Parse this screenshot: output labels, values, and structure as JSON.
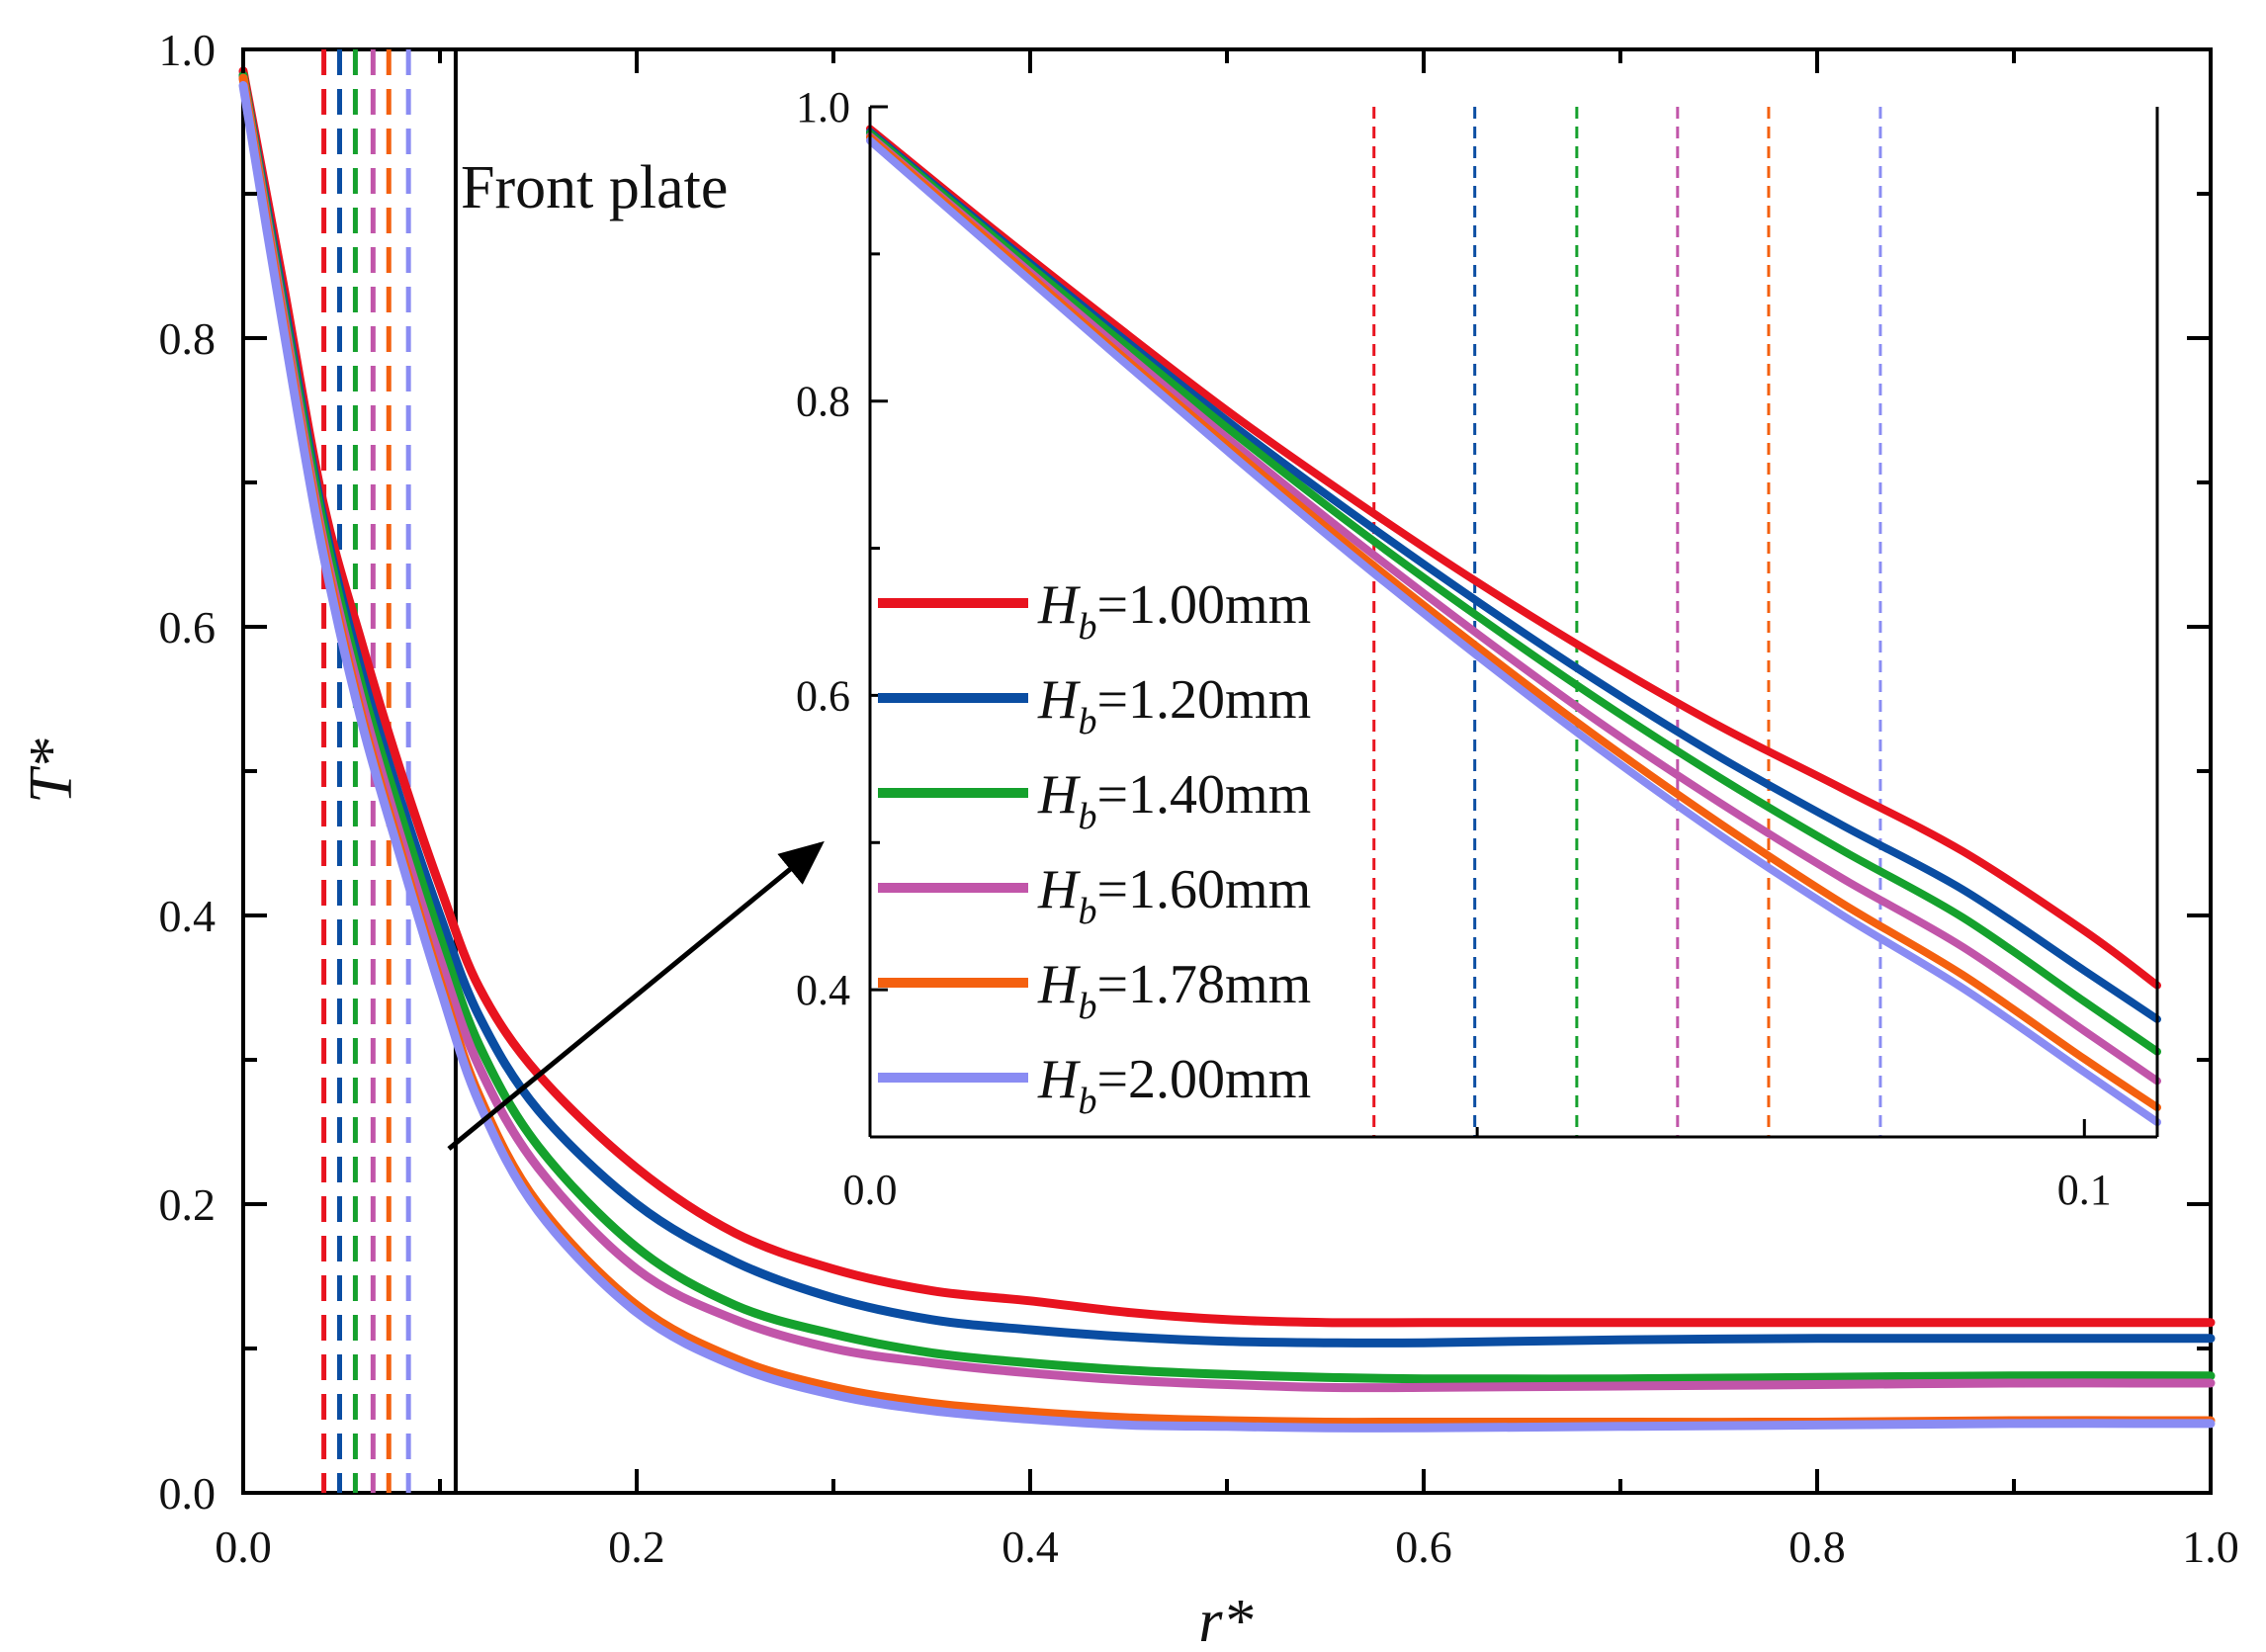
{
  "chart_data": [
    {
      "type": "line",
      "role": "main",
      "xlabel": "r*",
      "ylabel": "T*",
      "xlim": [
        0.0,
        1.0
      ],
      "ylim": [
        0.0,
        1.0
      ],
      "xticks": [
        "0.0",
        "0.2",
        "0.4",
        "0.6",
        "0.8",
        "1.0"
      ],
      "yticks": [
        "0.0",
        "0.2",
        "0.4",
        "0.6",
        "0.8",
        "1.0"
      ],
      "grid": false,
      "annotation": "Front plate",
      "front_plate_r": 0.108,
      "series": [
        {
          "name": "H_b=1.00mm",
          "label_main": "H",
          "label_sub": "b",
          "label_rest": "=1.00mm",
          "color": "#e8131f",
          "x": [
            0.0,
            0.02,
            0.04,
            0.06,
            0.08,
            0.1,
            0.12,
            0.15,
            0.2,
            0.25,
            0.3,
            0.35,
            0.4,
            0.45,
            0.5,
            0.55,
            0.6,
            0.7,
            0.8,
            0.9,
            1.0
          ],
          "y": [
            0.985,
            0.84,
            0.69,
            0.59,
            0.5,
            0.42,
            0.35,
            0.29,
            0.225,
            0.18,
            0.155,
            0.14,
            0.133,
            0.125,
            0.12,
            0.118,
            0.118,
            0.118,
            0.118,
            0.118,
            0.118
          ]
        },
        {
          "name": "H_b=1.20mm",
          "label_main": "H",
          "label_sub": "b",
          "label_rest": "=1.20mm",
          "color": "#0a4da2",
          "x": [
            0.0,
            0.02,
            0.04,
            0.06,
            0.08,
            0.1,
            0.12,
            0.15,
            0.2,
            0.25,
            0.3,
            0.35,
            0.4,
            0.45,
            0.5,
            0.55,
            0.6,
            0.7,
            0.8,
            0.9,
            1.0
          ],
          "y": [
            0.982,
            0.83,
            0.68,
            0.57,
            0.48,
            0.4,
            0.33,
            0.265,
            0.2,
            0.16,
            0.135,
            0.12,
            0.113,
            0.108,
            0.105,
            0.104,
            0.104,
            0.106,
            0.107,
            0.107,
            0.107
          ]
        },
        {
          "name": "H_b=1.40mm",
          "label_main": "H",
          "label_sub": "b",
          "label_rest": "=1.40mm",
          "color": "#15a12d",
          "x": [
            0.0,
            0.02,
            0.04,
            0.06,
            0.08,
            0.1,
            0.12,
            0.15,
            0.2,
            0.25,
            0.3,
            0.35,
            0.4,
            0.45,
            0.5,
            0.55,
            0.6,
            0.7,
            0.8,
            0.9,
            1.0
          ],
          "y": [
            0.982,
            0.825,
            0.675,
            0.56,
            0.47,
            0.385,
            0.31,
            0.24,
            0.17,
            0.13,
            0.11,
            0.097,
            0.09,
            0.085,
            0.082,
            0.08,
            0.079,
            0.079,
            0.08,
            0.081,
            0.081
          ]
        },
        {
          "name": "H_b=1.60mm",
          "label_main": "H",
          "label_sub": "b",
          "label_rest": "=1.60mm",
          "color": "#c155a9",
          "x": [
            0.0,
            0.02,
            0.04,
            0.06,
            0.08,
            0.1,
            0.12,
            0.15,
            0.2,
            0.25,
            0.3,
            0.35,
            0.4,
            0.45,
            0.5,
            0.55,
            0.6,
            0.7,
            0.8,
            0.9,
            1.0
          ],
          "y": [
            0.98,
            0.82,
            0.665,
            0.55,
            0.455,
            0.37,
            0.295,
            0.225,
            0.155,
            0.12,
            0.1,
            0.09,
            0.083,
            0.078,
            0.075,
            0.073,
            0.073,
            0.074,
            0.075,
            0.076,
            0.076
          ]
        },
        {
          "name": "H_b=1.78mm",
          "label_main": "H",
          "label_sub": "b",
          "label_rest": "=1.78mm",
          "color": "#f4600f",
          "x": [
            0.0,
            0.02,
            0.04,
            0.06,
            0.08,
            0.1,
            0.12,
            0.15,
            0.2,
            0.25,
            0.3,
            0.35,
            0.4,
            0.45,
            0.5,
            0.55,
            0.6,
            0.7,
            0.8,
            0.9,
            1.0
          ],
          "y": [
            0.98,
            0.815,
            0.66,
            0.54,
            0.445,
            0.355,
            0.275,
            0.2,
            0.13,
            0.093,
            0.073,
            0.062,
            0.056,
            0.052,
            0.05,
            0.049,
            0.049,
            0.049,
            0.049,
            0.05,
            0.05
          ]
        },
        {
          "name": "H_b=2.00mm",
          "label_main": "H",
          "label_sub": "b",
          "label_rest": "=2.00mm",
          "color": "#8a8cf3",
          "x": [
            0.0,
            0.02,
            0.04,
            0.06,
            0.08,
            0.1,
            0.12,
            0.15,
            0.2,
            0.25,
            0.3,
            0.35,
            0.4,
            0.45,
            0.5,
            0.55,
            0.6,
            0.7,
            0.8,
            0.9,
            1.0
          ],
          "y": [
            0.975,
            0.81,
            0.655,
            0.535,
            0.44,
            0.35,
            0.27,
            0.195,
            0.125,
            0.088,
            0.068,
            0.057,
            0.051,
            0.047,
            0.046,
            0.045,
            0.045,
            0.046,
            0.047,
            0.048,
            0.048
          ]
        }
      ],
      "boundary_lines": [
        {
          "r": 0.041,
          "color": "#e8131f"
        },
        {
          "r": 0.049,
          "color": "#0a4da2"
        },
        {
          "r": 0.057,
          "color": "#15a12d"
        },
        {
          "r": 0.066,
          "color": "#c155a9"
        },
        {
          "r": 0.074,
          "color": "#f4600f"
        },
        {
          "r": 0.084,
          "color": "#8a8cf3"
        }
      ]
    },
    {
      "type": "line",
      "role": "inset",
      "xlim": [
        0.0,
        0.106
      ],
      "ylim": [
        0.3,
        1.0
      ],
      "xticks": [
        "0.0",
        "0.1"
      ],
      "xtick_values": [
        0.0,
        0.1
      ],
      "yticks": [
        "0.4",
        "0.6",
        "0.8",
        "1.0"
      ],
      "ytick_values": [
        0.4,
        0.6,
        0.8,
        1.0
      ],
      "legend": "left",
      "series": [
        {
          "name": "H_b=1.00mm",
          "color": "#e8131f",
          "x": [
            0.0,
            0.01,
            0.02,
            0.03,
            0.04,
            0.05,
            0.06,
            0.07,
            0.08,
            0.09,
            0.1,
            0.106
          ],
          "y": [
            0.985,
            0.918,
            0.853,
            0.79,
            0.732,
            0.677,
            0.626,
            0.579,
            0.537,
            0.494,
            0.44,
            0.403
          ]
        },
        {
          "name": "H_b=1.20mm",
          "color": "#0a4da2",
          "x": [
            0.0,
            0.01,
            0.02,
            0.03,
            0.04,
            0.05,
            0.06,
            0.07,
            0.08,
            0.09,
            0.1,
            0.106
          ],
          "y": [
            0.983,
            0.915,
            0.848,
            0.783,
            0.722,
            0.664,
            0.609,
            0.558,
            0.512,
            0.468,
            0.413,
            0.38
          ]
        },
        {
          "name": "H_b=1.40mm",
          "color": "#15a12d",
          "x": [
            0.0,
            0.01,
            0.02,
            0.03,
            0.04,
            0.05,
            0.06,
            0.07,
            0.08,
            0.09,
            0.1,
            0.106
          ],
          "y": [
            0.982,
            0.913,
            0.845,
            0.778,
            0.714,
            0.654,
            0.597,
            0.544,
            0.495,
            0.449,
            0.392,
            0.358
          ]
        },
        {
          "name": "H_b=1.60mm",
          "color": "#c155a9",
          "x": [
            0.0,
            0.01,
            0.02,
            0.03,
            0.04,
            0.05,
            0.06,
            0.07,
            0.08,
            0.09,
            0.1,
            0.106
          ],
          "y": [
            0.98,
            0.91,
            0.84,
            0.771,
            0.705,
            0.642,
            0.582,
            0.527,
            0.476,
            0.429,
            0.372,
            0.338
          ]
        },
        {
          "name": "H_b=1.78mm",
          "color": "#f4600f",
          "x": [
            0.0,
            0.01,
            0.02,
            0.03,
            0.04,
            0.05,
            0.06,
            0.07,
            0.08,
            0.09,
            0.1,
            0.106
          ],
          "y": [
            0.979,
            0.908,
            0.836,
            0.766,
            0.698,
            0.633,
            0.571,
            0.513,
            0.459,
            0.41,
            0.353,
            0.32
          ]
        },
        {
          "name": "H_b=2.00mm",
          "color": "#8a8cf3",
          "x": [
            0.0,
            0.01,
            0.02,
            0.03,
            0.04,
            0.05,
            0.06,
            0.07,
            0.08,
            0.09,
            0.1,
            0.106
          ],
          "y": [
            0.977,
            0.905,
            0.833,
            0.762,
            0.693,
            0.627,
            0.564,
            0.505,
            0.451,
            0.401,
            0.344,
            0.31
          ]
        }
      ],
      "boundary_lines": [
        {
          "r": 0.0415,
          "color": "#e8131f"
        },
        {
          "r": 0.0498,
          "color": "#0a4da2"
        },
        {
          "r": 0.0582,
          "color": "#15a12d"
        },
        {
          "r": 0.0665,
          "color": "#c155a9"
        },
        {
          "r": 0.074,
          "color": "#f4600f"
        },
        {
          "r": 0.0832,
          "color": "#8a8cf3"
        }
      ]
    }
  ]
}
